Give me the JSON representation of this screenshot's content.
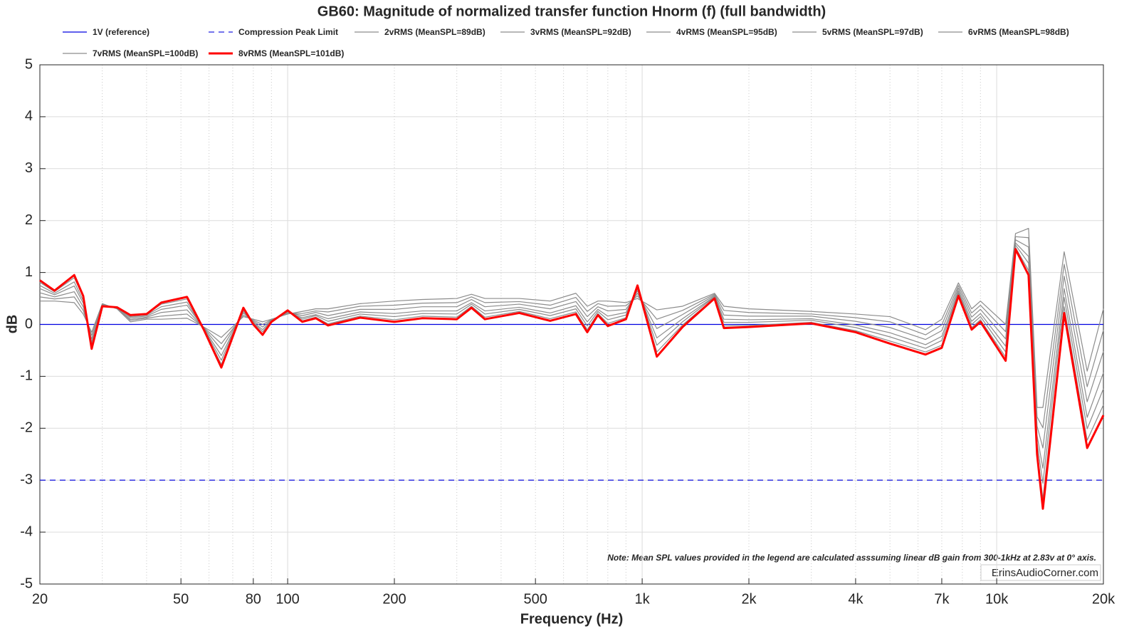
{
  "chart_data": {
    "type": "line",
    "title": "GB60: Magnitude of normalized transfer function Hnorm (f) (full bandwidth)",
    "xlabel": "Frequency (Hz)",
    "ylabel": "dB",
    "xscale": "log",
    "xlim": [
      20,
      20000
    ],
    "ylim": [
      -5,
      5
    ],
    "xticks": [
      20,
      50,
      80,
      100,
      200,
      500,
      {
        "value": 1000,
        "label": "1k"
      },
      {
        "value": 2000,
        "label": "2k"
      },
      {
        "value": 4000,
        "label": "4k"
      },
      {
        "value": 7000,
        "label": "7k"
      },
      {
        "value": 10000,
        "label": "10k"
      },
      {
        "value": 20000,
        "label": "20k"
      }
    ],
    "xminorticks": [
      30,
      40,
      60,
      70,
      90,
      300,
      400,
      600,
      700,
      800,
      900,
      3000,
      5000,
      6000,
      8000,
      9000
    ],
    "yticks": [
      -5,
      -4,
      -3,
      -2,
      -1,
      0,
      1,
      2,
      3,
      4,
      5
    ],
    "grid": true,
    "legend": "top",
    "annotations": [
      "Note: Mean SPL values provided in the legend are calculated asssuming linear dB gain from 300-1kHz at 2.83v at 0° axis.",
      "ErinsAudioCorner.com"
    ],
    "x": [
      20,
      22,
      25,
      26.5,
      28,
      30,
      33,
      36,
      40,
      44,
      52,
      58,
      65,
      75,
      80,
      85,
      90,
      100,
      110,
      120,
      130,
      160,
      200,
      240,
      300,
      330,
      360,
      450,
      550,
      650,
      700,
      750,
      800,
      900,
      970,
      1100,
      1300,
      1600,
      1700,
      2000,
      3000,
      4000,
      5000,
      6300,
      7000,
      7800,
      8500,
      9000,
      10600,
      11300,
      12300,
      13000,
      13500,
      15500,
      18000,
      20000
    ],
    "series": [
      {
        "name": "1V (reference)",
        "color": "#0000e0",
        "x": [
          20,
          20000
        ],
        "values": [
          0,
          0
        ]
      },
      {
        "name": "Compression Peak Limit",
        "color": "#2020e0",
        "dashed": true,
        "x": [
          20,
          20000
        ],
        "values": [
          -3,
          -3
        ]
      },
      {
        "name": "2vRMS (MeanSPL=89dB)",
        "color": "#8c8c8c",
        "values": [
          0.45,
          0.45,
          0.42,
          0.2,
          -0.15,
          0.4,
          0.3,
          0.05,
          0.1,
          0.1,
          0.12,
          -0.05,
          -0.25,
          0.15,
          0.1,
          0.05,
          0.1,
          0.2,
          0.25,
          0.3,
          0.3,
          0.4,
          0.45,
          0.48,
          0.5,
          0.58,
          0.5,
          0.5,
          0.45,
          0.6,
          0.35,
          0.45,
          0.45,
          0.42,
          0.5,
          0.28,
          0.35,
          0.6,
          0.35,
          0.3,
          0.25,
          0.2,
          0.15,
          -0.1,
          0.1,
          0.8,
          0.3,
          0.45,
          0.0,
          1.75,
          1.85,
          -1.6,
          -1.6,
          1.4,
          -0.9,
          0.3
        ]
      },
      {
        "name": "3vRMS (MeanSPL=92dB)",
        "color": "#8c8c8c",
        "values": [
          0.53,
          0.49,
          0.53,
          0.27,
          -0.21,
          0.39,
          0.31,
          0.08,
          0.12,
          0.16,
          0.2,
          -0.06,
          -0.37,
          0.18,
          0.08,
          0,
          0.09,
          0.21,
          0.21,
          0.26,
          0.24,
          0.35,
          0.37,
          0.41,
          0.42,
          0.53,
          0.42,
          0.44,
          0.37,
          0.52,
          0.25,
          0.4,
          0.35,
          0.36,
          0.55,
          0.1,
          0.27,
          0.58,
          0.27,
          0.23,
          0.2,
          0.13,
          0.05,
          -0.2,
          -0.01,
          0.75,
          0.22,
          0.37,
          -0.14,
          1.69,
          1.67,
          -1.78,
          -1.99,
          1.16,
          -1.2,
          -0.11
        ]
      },
      {
        "name": "4vRMS (MeanSPL=95dB)",
        "color": "#8c8c8c",
        "values": [
          0.61,
          0.53,
          0.63,
          0.34,
          -0.28,
          0.38,
          0.31,
          0.1,
          0.14,
          0.23,
          0.28,
          -0.07,
          -0.48,
          0.22,
          0.06,
          -0.05,
          0.08,
          0.23,
          0.17,
          0.23,
          0.17,
          0.29,
          0.29,
          0.34,
          0.34,
          0.48,
          0.34,
          0.39,
          0.3,
          0.44,
          0.15,
          0.34,
          0.26,
          0.29,
          0.6,
          -0.08,
          0.19,
          0.56,
          0.18,
          0.16,
          0.16,
          0.06,
          -0.06,
          -0.29,
          -0.12,
          0.7,
          0.14,
          0.29,
          -0.28,
          1.63,
          1.49,
          -1.96,
          -2.38,
          0.93,
          -1.49,
          -0.52
        ]
      },
      {
        "name": "5vRMS (MeanSPL=97dB)",
        "color": "#8c8c8c",
        "values": [
          0.69,
          0.57,
          0.74,
          0.41,
          -0.34,
          0.37,
          0.32,
          0.13,
          0.16,
          0.29,
          0.37,
          -0.08,
          -0.6,
          0.25,
          0.04,
          -0.1,
          0.07,
          0.24,
          0.13,
          0.19,
          0.11,
          0.24,
          0.21,
          0.26,
          0.26,
          0.42,
          0.26,
          0.33,
          0.22,
          0.36,
          0.05,
          0.29,
          0.16,
          0.23,
          0.65,
          -0.26,
          0.11,
          0.54,
          0.1,
          0.09,
          0.11,
          -0.01,
          -0.16,
          -0.39,
          -0.23,
          0.65,
          0.06,
          0.21,
          -0.42,
          1.57,
          1.31,
          -2.14,
          -2.77,
          0.69,
          -1.79,
          -0.93
        ]
      },
      {
        "name": "6vRMS (MeanSPL=98dB)",
        "color": "#8c8c8c",
        "values": [
          0.75,
          0.6,
          0.82,
          0.46,
          -0.39,
          0.36,
          0.32,
          0.15,
          0.18,
          0.34,
          0.43,
          -0.09,
          -0.69,
          0.28,
          0.03,
          -0.14,
          0.06,
          0.25,
          0.1,
          0.17,
          0.06,
          0.2,
          0.15,
          0.21,
          0.2,
          0.39,
          0.2,
          0.29,
          0.17,
          0.3,
          -0.03,
          0.25,
          0.09,
          0.18,
          0.69,
          -0.4,
          0.05,
          0.53,
          0.04,
          0.04,
          0.08,
          -0.06,
          -0.24,
          -0.46,
          -0.31,
          0.61,
          0,
          0.15,
          -0.53,
          1.53,
          1.18,
          -2.28,
          -3.06,
          0.52,
          -2.01,
          -1.24
        ]
      },
      {
        "name": "7vRMS (MeanSPL=100dB)",
        "color": "#8c8c8c",
        "values": [
          0.81,
          0.63,
          0.9,
          0.52,
          -0.44,
          0.36,
          0.33,
          0.17,
          0.19,
          0.39,
          0.49,
          -0.1,
          -0.77,
          0.3,
          0.01,
          -0.18,
          0.06,
          0.26,
          0.07,
          0.14,
          0.01,
          0.16,
          0.09,
          0.16,
          0.14,
          0.35,
          0.14,
          0.25,
          0.11,
          0.24,
          -0.1,
          0.21,
          0.02,
          0.13,
          0.73,
          -0.53,
          -0.01,
          0.51,
          -0.03,
          -0.02,
          0.04,
          -0.12,
          -0.32,
          -0.53,
          -0.4,
          0.58,
          -0.06,
          0.09,
          -0.63,
          1.48,
          1.04,
          -2.41,
          -3.36,
          0.34,
          -2.23,
          -1.55
        ]
      },
      {
        "name": "8vRMS (MeanSPL=101dB)",
        "color": "#ff0000",
        "bold": true,
        "values": [
          0.85,
          0.65,
          0.95,
          0.55,
          -0.47,
          0.35,
          0.33,
          0.18,
          0.2,
          0.42,
          0.53,
          -0.1,
          -0.83,
          0.32,
          0.0,
          -0.2,
          0.05,
          0.27,
          0.05,
          0.12,
          -0.02,
          0.13,
          0.05,
          0.12,
          0.1,
          0.32,
          0.1,
          0.22,
          0.07,
          0.2,
          -0.15,
          0.18,
          -0.03,
          0.1,
          0.75,
          -0.62,
          -0.05,
          0.5,
          -0.07,
          -0.05,
          0.02,
          -0.15,
          -0.37,
          -0.58,
          -0.45,
          0.55,
          -0.1,
          0.05,
          -0.7,
          1.45,
          0.95,
          -2.5,
          -3.55,
          0.22,
          -2.38,
          -1.75
        ]
      }
    ]
  }
}
